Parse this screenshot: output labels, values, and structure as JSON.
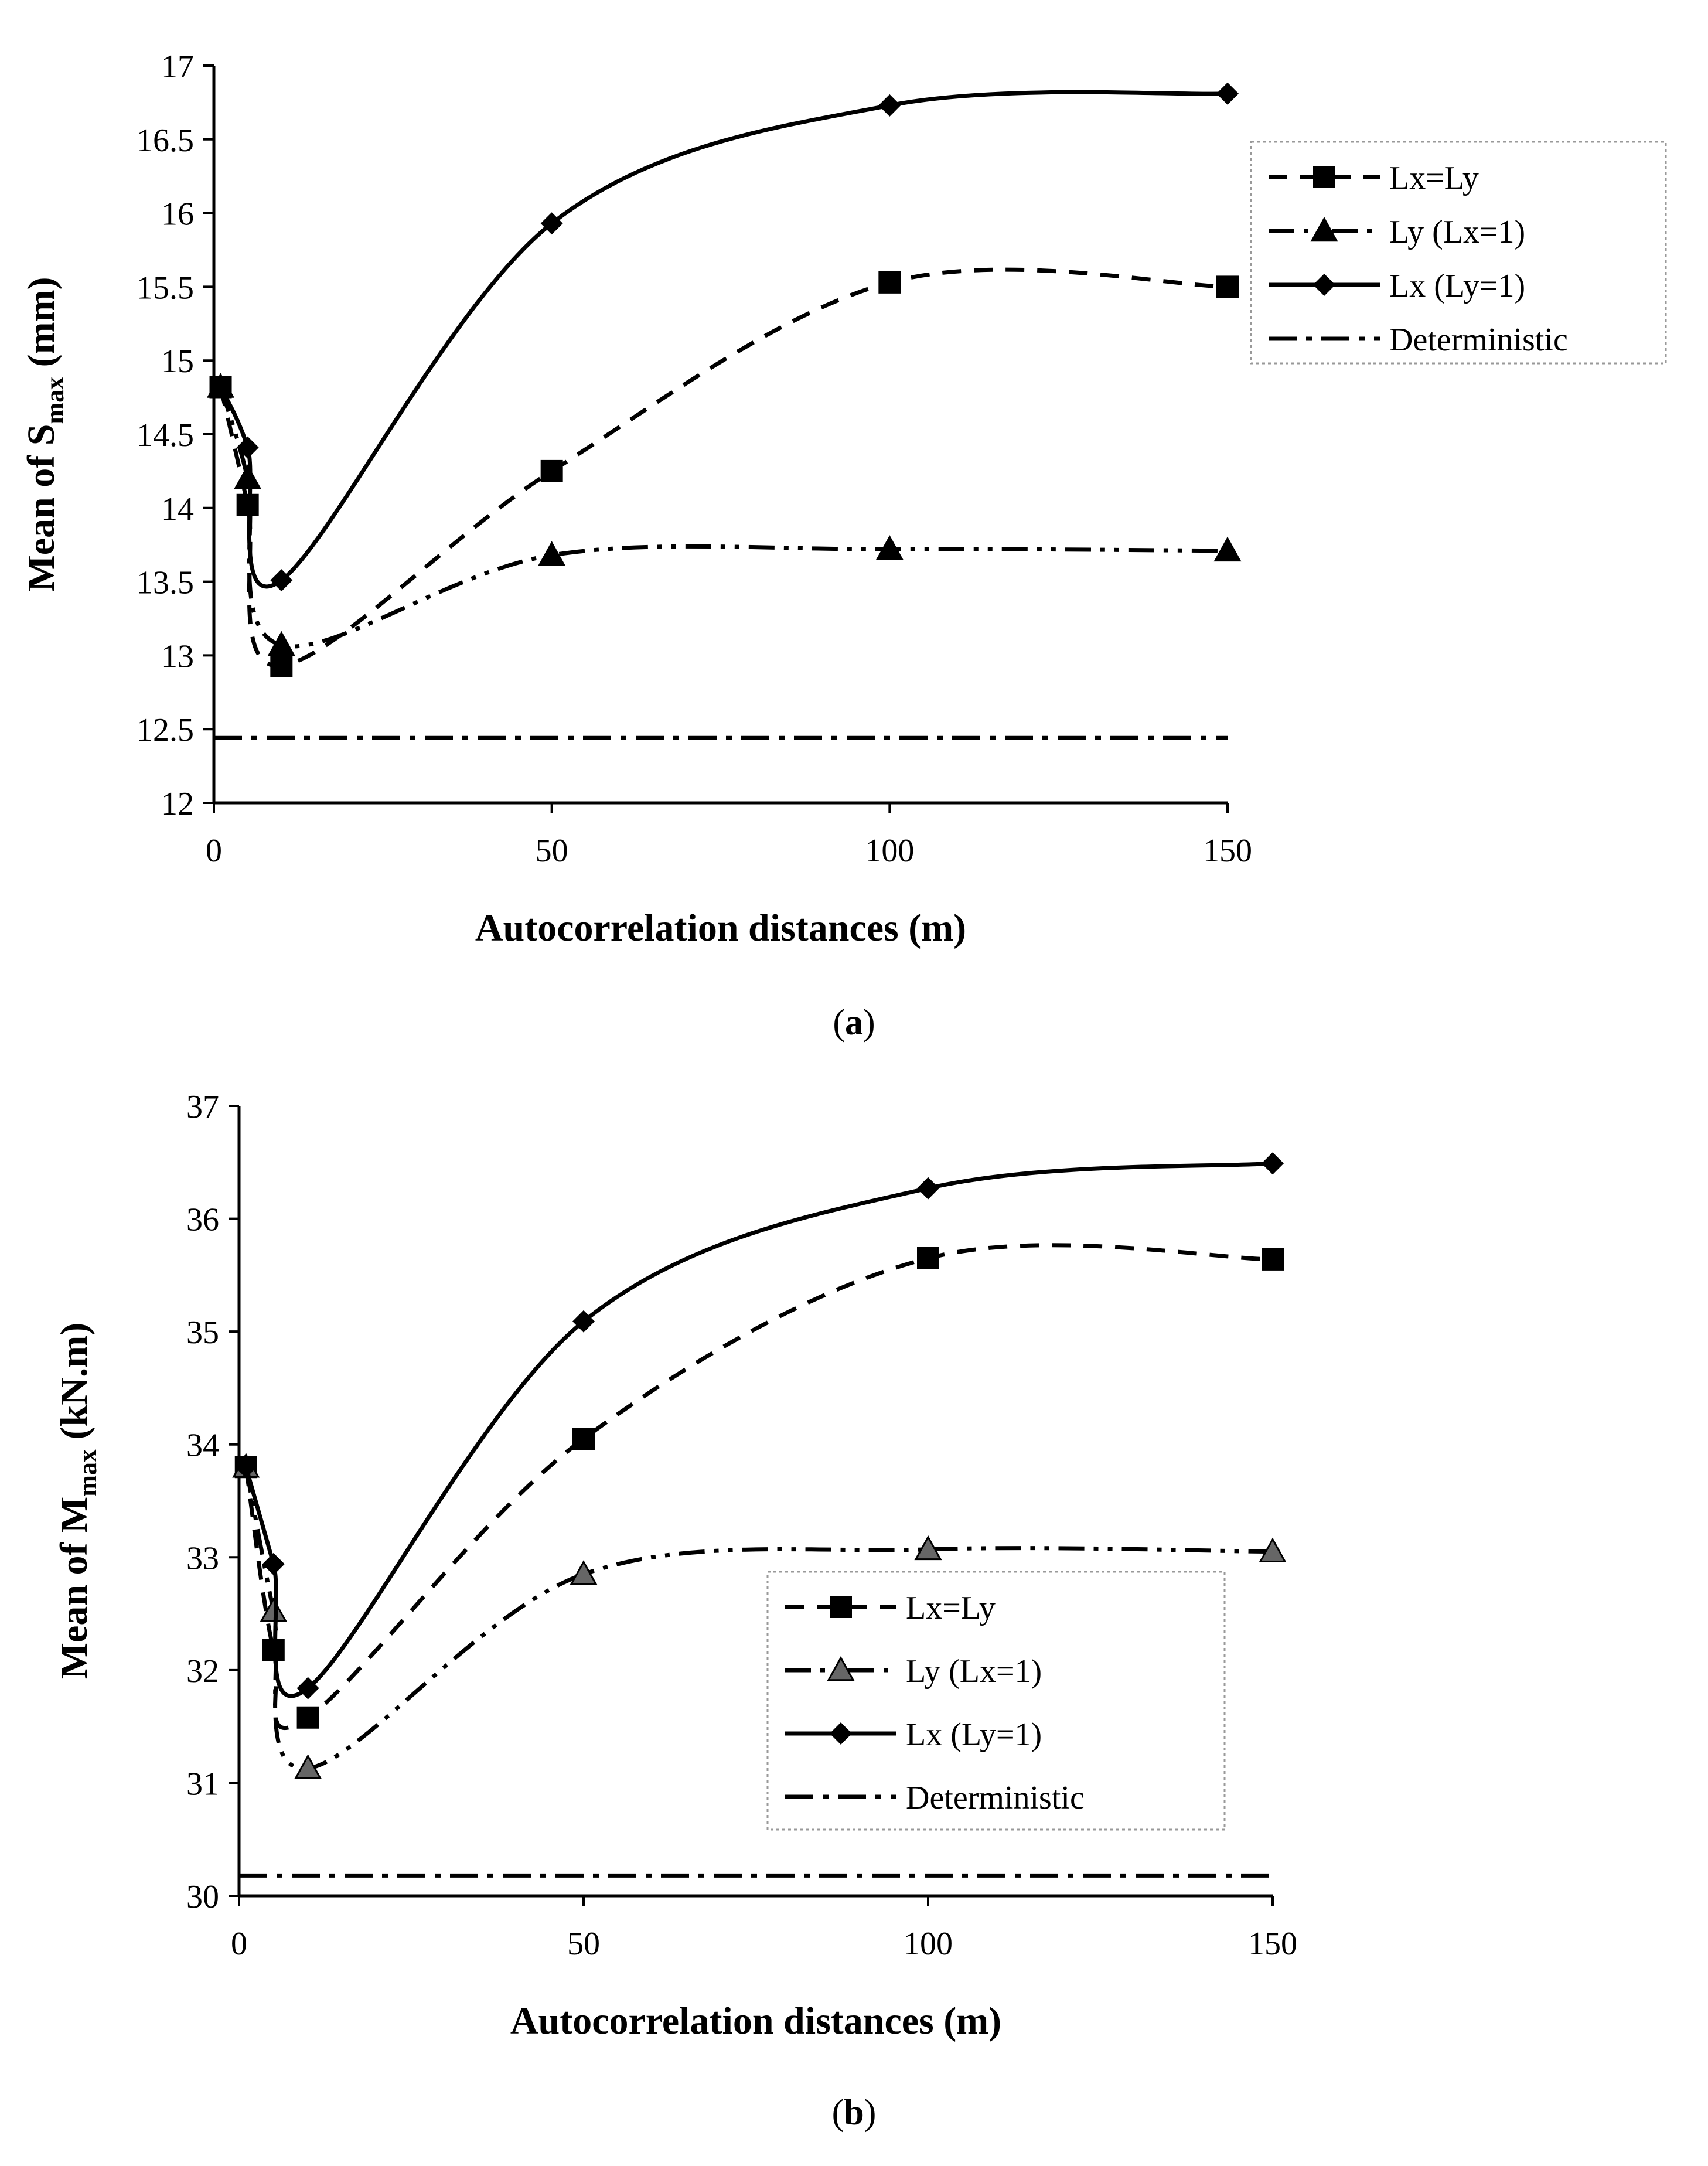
{
  "chart_data": [
    {
      "type": "line",
      "panel_label": "a",
      "xlabel": "Autocorrelation distances (m)",
      "ylabel_prefix": "Mean of S",
      "ylabel_sub": "max",
      "ylabel_suffix": " (mm)",
      "xlim": [
        0,
        150
      ],
      "ylim": [
        12,
        17
      ],
      "xticks": [
        0,
        50,
        100,
        150
      ],
      "yticks": [
        12,
        12.5,
        13,
        13.5,
        14,
        14.5,
        15,
        15.5,
        16,
        16.5,
        17
      ],
      "ytick_labels": [
        "12",
        "12.5",
        "13",
        "13.5",
        "14",
        "14.5",
        "15",
        "15.5",
        "16",
        "16.5",
        "17"
      ],
      "legend_position": "top-right",
      "series": [
        {
          "name": "Lx=Ly",
          "marker": "square",
          "dash": "dash",
          "x": [
            1,
            5,
            10,
            50,
            100,
            150
          ],
          "y": [
            14.82,
            14.02,
            12.93,
            14.25,
            15.53,
            15.5
          ]
        },
        {
          "name": "Ly (Lx=1)",
          "marker": "triangle",
          "dash": "dashdotdot",
          "x": [
            1,
            5,
            10,
            50,
            100,
            150
          ],
          "y": [
            14.82,
            14.2,
            13.07,
            13.68,
            13.72,
            13.71
          ]
        },
        {
          "name": "Lx (Ly=1)",
          "marker": "diamond",
          "dash": "solid",
          "x": [
            1,
            5,
            10,
            50,
            100,
            150
          ],
          "y": [
            14.82,
            14.41,
            13.51,
            15.93,
            16.73,
            16.81
          ]
        },
        {
          "name": "Deterministic",
          "marker": "none",
          "dash": "dashdot",
          "x": [
            0,
            150
          ],
          "y": [
            12.44,
            12.44
          ]
        }
      ]
    },
    {
      "type": "line",
      "panel_label": "b",
      "xlabel": "Autocorrelation distances (m)",
      "ylabel_prefix": "Mean of M",
      "ylabel_sub": "max",
      "ylabel_suffix": " (kN.m)",
      "xlim": [
        0,
        150
      ],
      "ylim": [
        30,
        37
      ],
      "xticks": [
        0,
        50,
        100,
        150
      ],
      "yticks": [
        30,
        31,
        32,
        33,
        34,
        35,
        36,
        37
      ],
      "ytick_labels": [
        "30",
        "31",
        "32",
        "33",
        "34",
        "35",
        "36",
        "37"
      ],
      "legend_position": "center",
      "series": [
        {
          "name": "Lx=Ly",
          "marker": "square",
          "dash": "dash",
          "x": [
            1,
            5,
            10,
            50,
            100,
            150
          ],
          "y": [
            33.8,
            32.18,
            31.58,
            34.05,
            35.65,
            35.64
          ]
        },
        {
          "name": "Ly (Lx=1)",
          "marker": "triangle-gray",
          "dash": "dashdotdot",
          "x": [
            1,
            5,
            10,
            50,
            100,
            150
          ],
          "y": [
            33.8,
            32.52,
            31.13,
            32.85,
            33.07,
            33.05
          ]
        },
        {
          "name": "Lx (Ly=1)",
          "marker": "diamond",
          "dash": "solid",
          "x": [
            1,
            5,
            10,
            50,
            100,
            150
          ],
          "y": [
            33.8,
            32.94,
            31.84,
            35.09,
            36.27,
            36.49
          ]
        },
        {
          "name": "Deterministic",
          "marker": "none",
          "dash": "dashdot",
          "x": [
            0,
            150
          ],
          "y": [
            30.18,
            30.18
          ]
        }
      ]
    }
  ]
}
